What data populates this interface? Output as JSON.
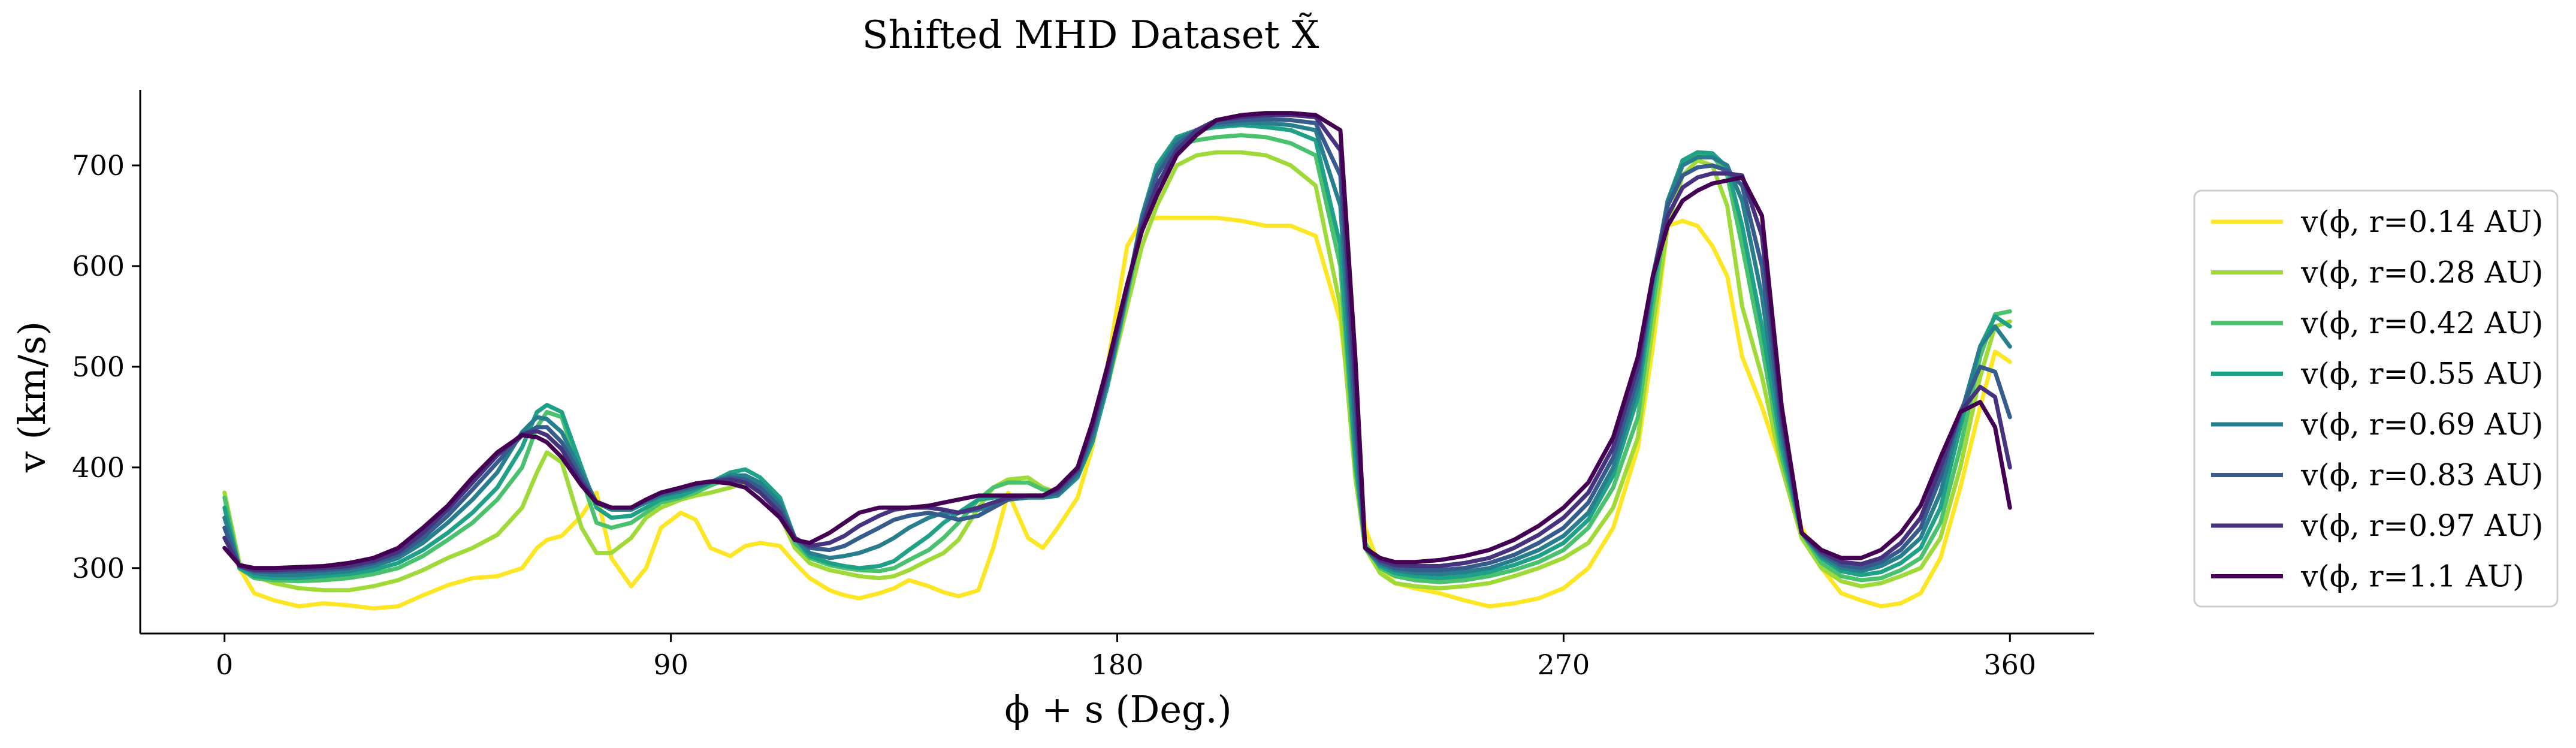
{
  "chart_data": {
    "type": "line",
    "title": "Shifted MHD Dataset X̃",
    "xlabel": "ϕ + s (Deg.)",
    "ylabel": "v (km/s)",
    "xlim": [
      -17,
      377
    ],
    "ylim": [
      235,
      775
    ],
    "xticks": [
      0,
      90,
      180,
      270,
      360
    ],
    "yticks": [
      300,
      400,
      500,
      600,
      700
    ],
    "grid": false,
    "legend_position": "center-right-outside",
    "x": [
      0,
      3,
      6,
      10,
      15,
      20,
      25,
      30,
      35,
      40,
      45,
      50,
      55,
      60,
      63,
      65,
      68,
      72,
      75,
      78,
      82,
      85,
      88,
      92,
      95,
      98,
      102,
      105,
      108,
      112,
      115,
      118,
      122,
      125,
      128,
      132,
      135,
      138,
      142,
      145,
      148,
      152,
      155,
      158,
      162,
      165,
      168,
      172,
      175,
      178,
      182,
      185,
      188,
      192,
      196,
      200,
      205,
      210,
      215,
      220,
      225,
      228,
      230,
      233,
      236,
      240,
      245,
      250,
      255,
      260,
      265,
      270,
      275,
      280,
      285,
      288,
      291,
      294,
      297,
      300,
      303,
      306,
      310,
      314,
      318,
      322,
      326,
      330,
      334,
      338,
      342,
      346,
      350,
      354,
      357,
      360
    ],
    "series": [
      {
        "name": "v(ϕ, r=0.14 AU)",
        "color": "#fde725",
        "values": [
          375,
          300,
          275,
          268,
          262,
          265,
          263,
          260,
          262,
          273,
          283,
          290,
          292,
          300,
          320,
          328,
          332,
          352,
          375,
          310,
          282,
          300,
          340,
          355,
          348,
          320,
          312,
          322,
          325,
          322,
          305,
          290,
          278,
          273,
          270,
          275,
          280,
          288,
          282,
          276,
          272,
          278,
          320,
          375,
          330,
          320,
          340,
          370,
          420,
          500,
          620,
          645,
          648,
          648,
          648,
          648,
          645,
          640,
          640,
          630,
          545,
          420,
          340,
          300,
          285,
          280,
          275,
          268,
          262,
          265,
          270,
          280,
          300,
          340,
          420,
          520,
          640,
          645,
          640,
          620,
          590,
          510,
          460,
          400,
          340,
          300,
          275,
          268,
          262,
          265,
          275,
          310,
          380,
          460,
          515,
          505
        ]
      },
      {
        "name": "v(ϕ, r=0.28 AU)",
        "color": "#a0da39",
        "values": [
          375,
          305,
          292,
          285,
          280,
          278,
          278,
          282,
          288,
          298,
          310,
          320,
          333,
          360,
          395,
          415,
          405,
          340,
          315,
          315,
          330,
          350,
          360,
          368,
          372,
          375,
          380,
          385,
          385,
          352,
          320,
          305,
          298,
          295,
          292,
          290,
          292,
          298,
          308,
          315,
          328,
          360,
          380,
          388,
          390,
          380,
          375,
          400,
          430,
          480,
          560,
          620,
          660,
          700,
          710,
          713,
          713,
          710,
          700,
          680,
          560,
          390,
          320,
          295,
          285,
          282,
          280,
          282,
          285,
          292,
          300,
          310,
          325,
          360,
          430,
          540,
          640,
          690,
          705,
          700,
          660,
          560,
          490,
          400,
          330,
          300,
          287,
          282,
          285,
          292,
          300,
          330,
          400,
          490,
          540,
          545
        ]
      },
      {
        "name": "v(ϕ, r=0.42 AU)",
        "color": "#4ac16d",
        "values": [
          370,
          300,
          290,
          288,
          287,
          288,
          290,
          294,
          300,
          312,
          328,
          345,
          368,
          400,
          440,
          455,
          450,
          390,
          345,
          340,
          345,
          355,
          365,
          370,
          375,
          382,
          390,
          392,
          385,
          360,
          325,
          310,
          303,
          300,
          298,
          297,
          300,
          308,
          318,
          330,
          345,
          368,
          380,
          385,
          385,
          378,
          375,
          395,
          428,
          480,
          570,
          640,
          690,
          720,
          725,
          728,
          730,
          728,
          722,
          710,
          600,
          400,
          325,
          300,
          292,
          288,
          286,
          288,
          292,
          298,
          306,
          318,
          340,
          380,
          450,
          560,
          660,
          700,
          712,
          710,
          690,
          620,
          520,
          410,
          335,
          305,
          292,
          288,
          290,
          298,
          310,
          345,
          420,
          510,
          552,
          555
        ]
      },
      {
        "name": "v(ϕ, r=0.55 AU)",
        "color": "#1fa187",
        "values": [
          360,
          300,
          292,
          290,
          290,
          292,
          294,
          298,
          305,
          318,
          335,
          355,
          380,
          420,
          455,
          462,
          455,
          400,
          360,
          350,
          352,
          360,
          368,
          372,
          378,
          385,
          395,
          398,
          390,
          370,
          330,
          312,
          305,
          302,
          300,
          302,
          307,
          318,
          332,
          345,
          355,
          368,
          370,
          372,
          372,
          370,
          372,
          390,
          425,
          480,
          575,
          650,
          700,
          728,
          735,
          738,
          740,
          738,
          735,
          725,
          620,
          410,
          320,
          302,
          295,
          292,
          290,
          292,
          296,
          303,
          312,
          325,
          348,
          392,
          470,
          575,
          665,
          705,
          713,
          712,
          698,
          640,
          540,
          420,
          335,
          310,
          297,
          293,
          296,
          305,
          320,
          360,
          440,
          520,
          550,
          540
        ]
      },
      {
        "name": "v(ϕ, r=0.69 AU)",
        "color": "#277f8e",
        "values": [
          350,
          302,
          295,
          293,
          293,
          295,
          297,
          302,
          310,
          325,
          345,
          368,
          395,
          435,
          450,
          448,
          435,
          395,
          365,
          358,
          358,
          365,
          372,
          376,
          380,
          385,
          392,
          392,
          385,
          365,
          330,
          315,
          310,
          312,
          315,
          322,
          330,
          340,
          350,
          355,
          355,
          358,
          362,
          368,
          370,
          370,
          372,
          392,
          430,
          485,
          575,
          650,
          695,
          725,
          735,
          740,
          742,
          742,
          740,
          735,
          660,
          430,
          320,
          304,
          298,
          295,
          294,
          296,
          300,
          308,
          318,
          332,
          355,
          400,
          480,
          585,
          665,
          700,
          708,
          708,
          700,
          665,
          570,
          430,
          335,
          312,
          300,
          297,
          302,
          312,
          330,
          375,
          450,
          520,
          540,
          520
        ]
      },
      {
        "name": "v(ϕ, r=0.83 AU)",
        "color": "#365c8d",
        "values": [
          340,
          302,
          297,
          296,
          297,
          298,
          300,
          305,
          313,
          330,
          352,
          378,
          405,
          432,
          440,
          440,
          425,
          390,
          365,
          360,
          360,
          367,
          373,
          378,
          382,
          386,
          390,
          388,
          380,
          360,
          330,
          320,
          318,
          322,
          330,
          340,
          348,
          352,
          355,
          352,
          348,
          352,
          360,
          368,
          372,
          372,
          375,
          395,
          435,
          490,
          578,
          645,
          690,
          720,
          735,
          742,
          745,
          746,
          745,
          742,
          690,
          450,
          320,
          306,
          300,
          298,
          298,
          300,
          305,
          313,
          325,
          340,
          365,
          410,
          490,
          590,
          660,
          690,
          698,
          700,
          695,
          680,
          600,
          440,
          335,
          314,
          303,
          300,
          306,
          318,
          340,
          390,
          455,
          500,
          495,
          450
        ]
      },
      {
        "name": "v(ϕ, r=0.97 AU)",
        "color": "#46327e",
        "values": [
          330,
          302,
          298,
          298,
          299,
          300,
          302,
          307,
          316,
          335,
          358,
          385,
          412,
          433,
          436,
          432,
          418,
          385,
          366,
          360,
          360,
          368,
          375,
          380,
          384,
          386,
          388,
          385,
          375,
          355,
          330,
          322,
          325,
          332,
          342,
          352,
          358,
          360,
          360,
          358,
          355,
          360,
          365,
          370,
          372,
          372,
          378,
          398,
          440,
          495,
          580,
          640,
          680,
          715,
          735,
          745,
          748,
          750,
          750,
          748,
          715,
          480,
          320,
          308,
          303,
          302,
          302,
          305,
          310,
          320,
          333,
          350,
          375,
          420,
          500,
          590,
          650,
          678,
          688,
          692,
          692,
          690,
          630,
          450,
          335,
          316,
          306,
          304,
          310,
          325,
          350,
          400,
          455,
          480,
          470,
          400
        ]
      },
      {
        "name": "v(ϕ, r=1.1 AU)",
        "color": "#440154",
        "values": [
          320,
          303,
          300,
          300,
          301,
          302,
          305,
          310,
          320,
          340,
          362,
          390,
          415,
          432,
          430,
          425,
          410,
          382,
          365,
          360,
          360,
          368,
          375,
          380,
          384,
          386,
          384,
          380,
          368,
          350,
          328,
          325,
          335,
          345,
          355,
          360,
          360,
          360,
          362,
          365,
          368,
          372,
          372,
          372,
          372,
          372,
          380,
          400,
          445,
          500,
          582,
          635,
          670,
          710,
          730,
          745,
          750,
          752,
          752,
          750,
          735,
          510,
          320,
          310,
          306,
          306,
          308,
          312,
          318,
          328,
          342,
          360,
          385,
          430,
          510,
          590,
          640,
          665,
          675,
          682,
          685,
          688,
          650,
          460,
          335,
          318,
          310,
          310,
          318,
          335,
          362,
          410,
          455,
          465,
          440,
          360
        ]
      }
    ]
  }
}
